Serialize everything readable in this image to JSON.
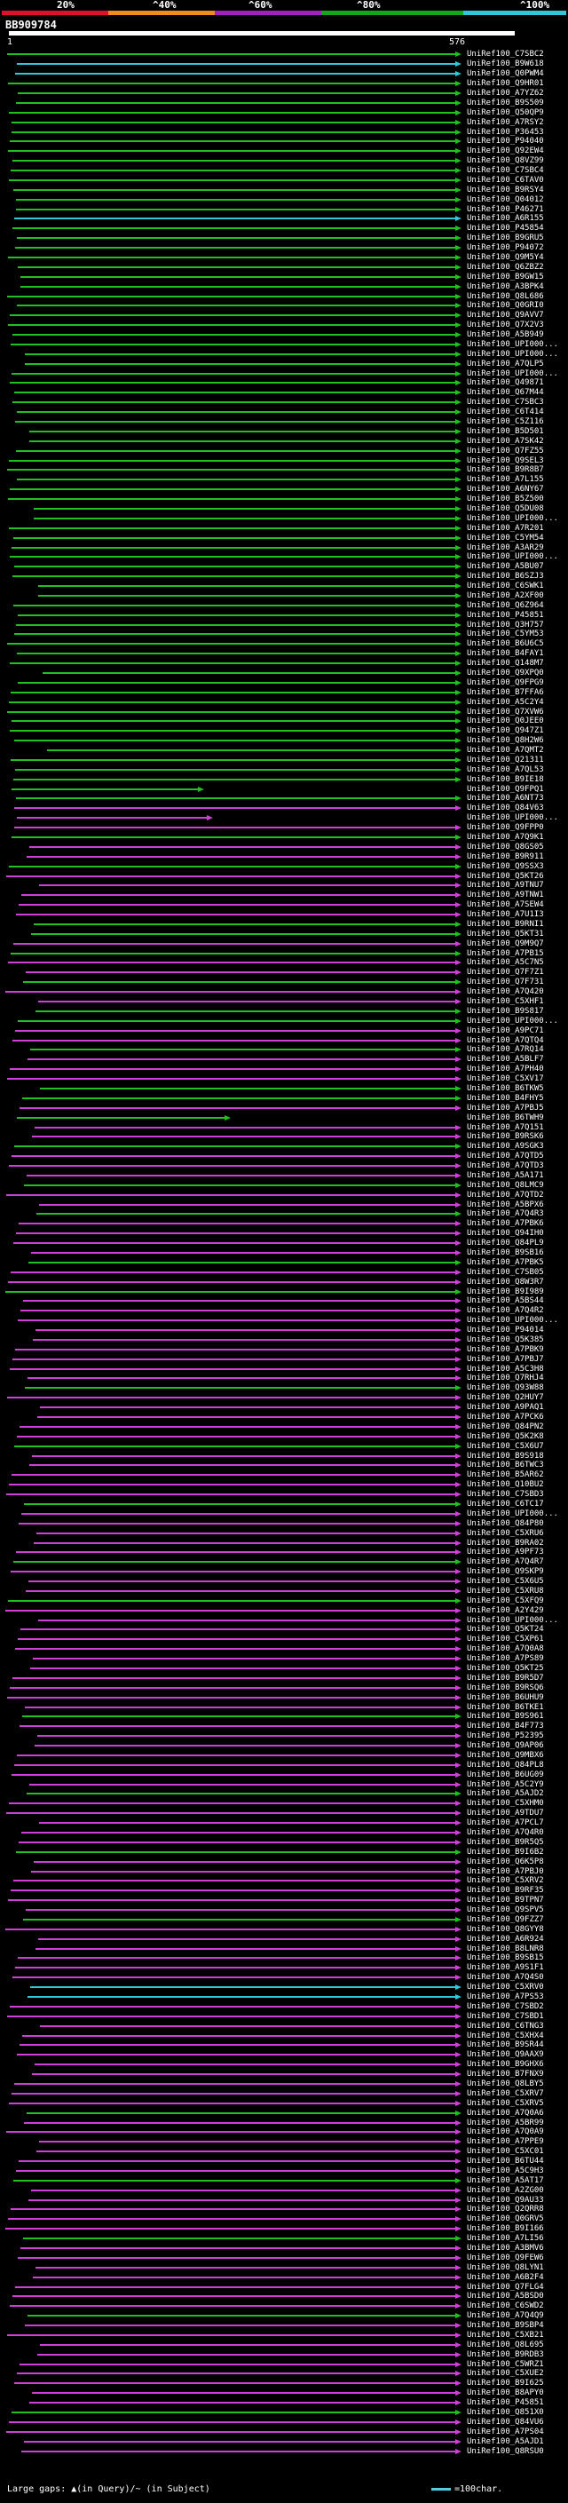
{
  "scale": {
    "labels": [
      "20%",
      "^40%",
      "^60%",
      "^80%",
      "^100%"
    ],
    "colors": {
      "red": "#e0102a",
      "orange": "#f08c1e",
      "purple": "#a020c0",
      "green": "#12a81a",
      "cyan": "#30c8d8"
    }
  },
  "query": {
    "id": "BB909784",
    "start": "1",
    "end": "576"
  },
  "hits": [
    "UniRef100_C7SBC2",
    "UniRef100_B9W618",
    "UniRef100_Q0PWM4",
    "UniRef100_Q9HR01",
    "UniRef100_A7YZ62",
    "UniRef100_B9S509",
    "UniRef100_Q50QP9",
    "UniRef100_A7RSY2",
    "UniRef100_P36453",
    "UniRef100_P94040",
    "UniRef100_Q92EW4",
    "UniRef100_Q8VZ99",
    "UniRef100_C7SBC4",
    "UniRef100_C6TAV0",
    "UniRef100_B9RSY4",
    "UniRef100_Q04012",
    "UniRef100_P46271",
    "UniRef100_A6R155",
    "UniRef100_P45854",
    "UniRef100_B9GRU5",
    "UniRef100_P94072",
    "UniRef100_Q9M5Y4",
    "UniRef100_Q6ZBZ2",
    "UniRef100_B9GW15",
    "UniRef100_A3BPK4",
    "UniRef100_Q8L686",
    "UniRef100_Q0GRI0",
    "UniRef100_Q9AVV7",
    "UniRef100_Q7X2V3",
    "UniRef100_A5B949",
    "UniRef100_UPI000...",
    "UniRef100_UPI000...",
    "UniRef100_A7QLP5",
    "UniRef100_UPI000...",
    "UniRef100_Q49871",
    "UniRef100_Q67M44",
    "UniRef100_C7SBC3",
    "UniRef100_C6T414",
    "UniRef100_C5Z116",
    "UniRef100_B5D501",
    "UniRef100_A7SK42",
    "UniRef100_Q7FZ55",
    "UniRef100_Q9SEL3",
    "UniRef100_B9R8B7",
    "UniRef100_A7L155",
    "UniRef100_A6NY67",
    "UniRef100_B5Z500",
    "UniRef100_Q5DU08",
    "UniRef100_UPI000...",
    "UniRef100_A7R201",
    "UniRef100_C5YM54",
    "UniRef100_A3AR29",
    "UniRef100_UPI000...",
    "UniRef100_A5BU07",
    "UniRef100_B6SZJ3",
    "UniRef100_C6SWK1",
    "UniRef100_A2XF00",
    "UniRef100_Q6Z964",
    "UniRef100_P45851",
    "UniRef100_Q3H757",
    "UniRef100_C5YM53",
    "UniRef100_B6U6C5",
    "UniRef100_B4FAY1",
    "UniRef100_Q148M7",
    "UniRef100_Q9XPQ0",
    "UniRef100_Q9FPG9",
    "UniRef100_B7FFA6",
    "UniRef100_A5C2Y4",
    "UniRef100_Q7XVW6",
    "UniRef100_Q0JEE0",
    "UniRef100_Q947Z1",
    "UniRef100_Q8H2W6",
    "UniRef100_A7QMT2",
    "UniRef100_Q21311",
    "UniRef100_A7QL53",
    "UniRef100_B9IE18",
    "UniRef100_Q9FPQ1",
    "UniRef100_A6NT73",
    "UniRef100_Q84V63",
    "UniRef100_UPI000...",
    "UniRef100_Q9FPP0",
    "UniRef100_A7Q9K1",
    "UniRef100_Q8GS05",
    "UniRef100_B9R911",
    "UniRef100_Q9SSX3",
    "UniRef100_Q5KT26",
    "UniRef100_A9TNU7",
    "UniRef100_A9TNW1",
    "UniRef100_A7SEW4",
    "UniRef100_A7U1I3",
    "UniRef100_B9RNI1",
    "UniRef100_Q5KT31",
    "UniRef100_Q9M9Q7",
    "UniRef100_A7PB15",
    "UniRef100_A5C7N5",
    "UniRef100_Q7F7Z1",
    "UniRef100_Q7F731",
    "UniRef100_A7Q420",
    "UniRef100_C5XHF1",
    "UniRef100_B9S817",
    "UniRef100_UPI000...",
    "UniRef100_A9PC71",
    "UniRef100_A7QTQ4",
    "UniRef100_A7RQ14",
    "UniRef100_A5BLF7",
    "UniRef100_A7PH40",
    "UniRef100_C5XV17",
    "UniRef100_B6TKW5",
    "UniRef100_B4FHY5",
    "UniRef100_A7PBJ5",
    "UniRef100_B6TWH9",
    "UniRef100_A7Q151",
    "UniRef100_B9RSK6",
    "UniRef100_A9SGK3",
    "UniRef100_A7QTD5",
    "UniRef100_A7QTD3",
    "UniRef100_A5A171",
    "UniRef100_Q8LMC9",
    "UniRef100_A7QTD2",
    "UniRef100_A5BPX6",
    "UniRef100_A7Q4R3",
    "UniRef100_A7PBK6",
    "UniRef100_Q94IH0",
    "UniRef100_Q84PL9",
    "UniRef100_B9SB16",
    "UniRef100_A7PBK5",
    "UniRef100_C7SB05",
    "UniRef100_Q8W3R7",
    "UniRef100_B9I989",
    "UniRef100_A5BS44",
    "UniRef100_A7Q4R2",
    "UniRef100_UPI000...",
    "UniRef100_P94014",
    "UniRef100_Q5K385",
    "UniRef100_A7PBK9",
    "UniRef100_A7PBJ7",
    "UniRef100_A5C3H8",
    "UniRef100_Q7RHJ4",
    "UniRef100_Q93W88",
    "UniRef100_Q2HUY7",
    "UniRef100_A9PAQ1",
    "UniRef100_A7PCK6",
    "UniRef100_Q84PN2",
    "UniRef100_Q5K2K8",
    "UniRef100_C5X6U7",
    "UniRef100_B9S918",
    "UniRef100_B6TWC3",
    "UniRef100_B5AR62",
    "UniRef100_Q10BU2",
    "UniRef100_C7SBD3",
    "UniRef100_C6TC17",
    "UniRef100_UPI000...",
    "UniRef100_Q84P80",
    "UniRef100_C5XRU6",
    "UniRef100_B9RA02",
    "UniRef100_A9PF73",
    "UniRef100_A7Q4R7",
    "UniRef100_Q9SKP9",
    "UniRef100_C5X6U5",
    "UniRef100_C5XRU8",
    "UniRef100_C5XFQ9",
    "UniRef100_A2Y429",
    "UniRef100_UPI000...",
    "UniRef100_Q5KT24",
    "UniRef100_C5XP61",
    "UniRef100_A7Q0A8",
    "UniRef100_A7PS89",
    "UniRef100_Q5KT25",
    "UniRef100_B9R5D7",
    "UniRef100_B9RSQ6",
    "UniRef100_B6UHU9",
    "UniRef100_B6TKE1",
    "UniRef100_B9S961",
    "UniRef100_B4F773",
    "UniRef100_P52395",
    "UniRef100_Q9AP06",
    "UniRef100_Q9MBX6",
    "UniRef100_Q84PL8",
    "UniRef100_B6UG09",
    "UniRef100_A5C2Y9",
    "UniRef100_A5AJD2",
    "UniRef100_C5XHM0",
    "UniRef100_A9TDU7",
    "UniRef100_A7PCL7",
    "UniRef100_A7Q4R0",
    "UniRef100_B9R5Q5",
    "UniRef100_B9I6B2",
    "UniRef100_Q6K5P8",
    "UniRef100_A7PBJ0",
    "UniRef100_C5XRV2",
    "UniRef100_B9RF35",
    "UniRef100_B9TPN7",
    "UniRef100_Q9SPV5",
    "UniRef100_Q9FZZ7",
    "UniRef100_Q8GYY8",
    "UniRef100_A6R924",
    "UniRef100_B8LNR8",
    "UniRef100_B9SB15",
    "UniRef100_A9S1F1",
    "UniRef100_A7Q4S0",
    "UniRef100_C5XRV0",
    "UniRef100_A7PS53",
    "UniRef100_C7SBD2",
    "UniRef100_C7SBD1",
    "UniRef100_C6TNG3",
    "UniRef100_C5XHX4",
    "UniRef100_B9SR44",
    "UniRef100_Q9AAX9",
    "UniRef100_B9GHX6",
    "UniRef100_B7FNX9",
    "UniRef100_Q8LBY5",
    "UniRef100_C5XRV7",
    "UniRef100_C5XRV5",
    "UniRef100_A7Q0A6",
    "UniRef100_A5BR99",
    "UniRef100_A7Q0A9",
    "UniRef100_A7PPE9",
    "UniRef100_C5XC01",
    "UniRef100_B6TU44",
    "UniRef100_A5C9H3",
    "UniRef100_A5AT17",
    "UniRef100_A2ZG00",
    "UniRef100_Q9AU33",
    "UniRef100_Q2QRR8",
    "UniRef100_Q0GRV5",
    "UniRef100_B9I166",
    "UniRef100_A7LI56",
    "UniRef100_A3BMV6",
    "UniRef100_Q9FEW6",
    "UniRef100_Q8LYN1",
    "UniRef100_A6B2F4",
    "UniRef100_Q7FLG4",
    "UniRef100_A5BSD0",
    "UniRef100_C6SWD2",
    "UniRef100_A7Q4Q9",
    "UniRef100_B9SBP4",
    "UniRef100_C5XB21",
    "UniRef100_Q8L695",
    "UniRef100_B9RDB3",
    "UniRef100_C5WRZ1",
    "UniRef100_C5XUE2",
    "UniRef100_B9I625",
    "UniRef100_B8APY0",
    "UniRef100_P45851",
    "UniRef100_Q851X0",
    "UniRef100_Q84VU6",
    "UniRef100_A7PS04",
    "UniRef100_A5AJD1",
    "UniRef100_Q8RSU0"
  ],
  "legend": {
    "left": "Large gaps: ▲(in Query)/~ (in Subject)",
    "right": "=100char."
  }
}
